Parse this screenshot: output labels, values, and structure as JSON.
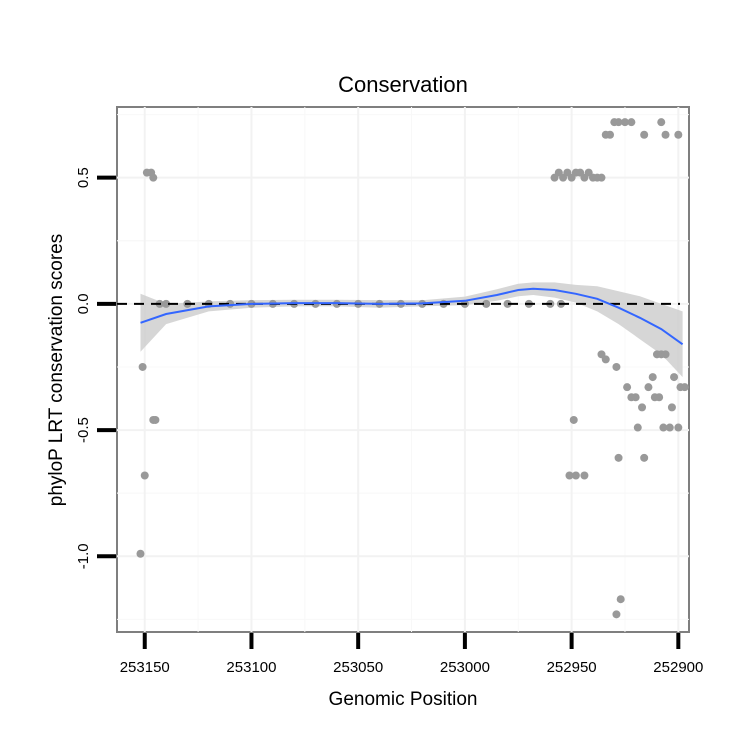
{
  "chart_data": {
    "type": "scatter",
    "title": "Conservation",
    "xlabel": "Genomic Position",
    "ylabel": "phyloP LRT conservation scores",
    "x_reversed": true,
    "xlim": [
      253163,
      252895
    ],
    "ylim": [
      -1.3,
      0.78
    ],
    "x_ticks": [
      {
        "value": 253150,
        "label": "253150"
      },
      {
        "value": 253100,
        "label": "253100"
      },
      {
        "value": 253050,
        "label": "253050"
      },
      {
        "value": 253000,
        "label": "253000"
      },
      {
        "value": 252950,
        "label": "252950"
      },
      {
        "value": 252900,
        "label": "252900"
      }
    ],
    "y_ticks": [
      {
        "value": -1.0,
        "label": "-1.0"
      },
      {
        "value": -0.5,
        "label": "-0.5"
      },
      {
        "value": 0.0,
        "label": "0.0"
      },
      {
        "value": 0.5,
        "label": "0.5"
      }
    ],
    "reference_line": {
      "y": 0.0,
      "style": "dashed",
      "color": "#000000"
    },
    "points_color": "#999999",
    "points": [
      {
        "x": 253149,
        "y": 0.52
      },
      {
        "x": 253147,
        "y": 0.52
      },
      {
        "x": 253146,
        "y": 0.5
      },
      {
        "x": 253151,
        "y": -0.25
      },
      {
        "x": 253150,
        "y": -0.68
      },
      {
        "x": 253152,
        "y": -0.99
      },
      {
        "x": 253145,
        "y": -0.46
      },
      {
        "x": 253146,
        "y": -0.46
      },
      {
        "x": 253143,
        "y": 0.0
      },
      {
        "x": 253140,
        "y": 0.0
      },
      {
        "x": 253130,
        "y": 0.0
      },
      {
        "x": 253120,
        "y": 0.0
      },
      {
        "x": 253110,
        "y": 0.0
      },
      {
        "x": 253100,
        "y": 0.0
      },
      {
        "x": 253090,
        "y": 0.0
      },
      {
        "x": 253080,
        "y": 0.0
      },
      {
        "x": 253070,
        "y": 0.0
      },
      {
        "x": 253060,
        "y": 0.0
      },
      {
        "x": 253050,
        "y": 0.0
      },
      {
        "x": 253040,
        "y": 0.0
      },
      {
        "x": 253030,
        "y": 0.0
      },
      {
        "x": 253020,
        "y": 0.0
      },
      {
        "x": 253010,
        "y": 0.0
      },
      {
        "x": 253000,
        "y": 0.0
      },
      {
        "x": 252990,
        "y": 0.0
      },
      {
        "x": 252980,
        "y": 0.0
      },
      {
        "x": 252970,
        "y": 0.0
      },
      {
        "x": 252960,
        "y": 0.0
      },
      {
        "x": 252955,
        "y": 0.0
      },
      {
        "x": 252958,
        "y": 0.5
      },
      {
        "x": 252956,
        "y": 0.52
      },
      {
        "x": 252954,
        "y": 0.5
      },
      {
        "x": 252952,
        "y": 0.52
      },
      {
        "x": 252950,
        "y": 0.5
      },
      {
        "x": 252948,
        "y": 0.52
      },
      {
        "x": 252946,
        "y": 0.52
      },
      {
        "x": 252944,
        "y": 0.5
      },
      {
        "x": 252942,
        "y": 0.52
      },
      {
        "x": 252940,
        "y": 0.5
      },
      {
        "x": 252938,
        "y": 0.5
      },
      {
        "x": 252936,
        "y": 0.5
      },
      {
        "x": 252934,
        "y": 0.67
      },
      {
        "x": 252932,
        "y": 0.67
      },
      {
        "x": 252930,
        "y": 0.72
      },
      {
        "x": 252928,
        "y": 0.72
      },
      {
        "x": 252925,
        "y": 0.72
      },
      {
        "x": 252922,
        "y": 0.72
      },
      {
        "x": 252916,
        "y": 0.67
      },
      {
        "x": 252908,
        "y": 0.72
      },
      {
        "x": 252906,
        "y": 0.67
      },
      {
        "x": 252900,
        "y": 0.67
      },
      {
        "x": 252949,
        "y": -0.46
      },
      {
        "x": 252951,
        "y": -0.68
      },
      {
        "x": 252948,
        "y": -0.68
      },
      {
        "x": 252944,
        "y": -0.68
      },
      {
        "x": 252936,
        "y": -0.2
      },
      {
        "x": 252934,
        "y": -0.22
      },
      {
        "x": 252929,
        "y": -0.25
      },
      {
        "x": 252928,
        "y": -0.61
      },
      {
        "x": 252924,
        "y": -0.33
      },
      {
        "x": 252922,
        "y": -0.37
      },
      {
        "x": 252920,
        "y": -0.37
      },
      {
        "x": 252919,
        "y": -0.49
      },
      {
        "x": 252917,
        "y": -0.41
      },
      {
        "x": 252916,
        "y": -0.61
      },
      {
        "x": 252914,
        "y": -0.33
      },
      {
        "x": 252912,
        "y": -0.29
      },
      {
        "x": 252911,
        "y": -0.37
      },
      {
        "x": 252910,
        "y": -0.2
      },
      {
        "x": 252909,
        "y": -0.37
      },
      {
        "x": 252908,
        "y": -0.2
      },
      {
        "x": 252907,
        "y": -0.49
      },
      {
        "x": 252906,
        "y": -0.2
      },
      {
        "x": 252904,
        "y": -0.49
      },
      {
        "x": 252903,
        "y": -0.41
      },
      {
        "x": 252902,
        "y": -0.29
      },
      {
        "x": 252900,
        "y": -0.49
      },
      {
        "x": 252899,
        "y": -0.33
      },
      {
        "x": 252897,
        "y": -0.33
      },
      {
        "x": 252927,
        "y": -1.17
      },
      {
        "x": 252929,
        "y": -1.23
      }
    ],
    "smooth_line": {
      "color": "#3366ff",
      "band_color": "#cccccc",
      "x": [
        253152,
        253140,
        253120,
        253100,
        253080,
        253060,
        253040,
        253020,
        253000,
        252985,
        252975,
        252968,
        252958,
        252948,
        252938,
        252928,
        252918,
        252908,
        252898
      ],
      "y": [
        -0.075,
        -0.04,
        -0.01,
        0.0,
        0.003,
        0.003,
        0.0,
        0.002,
        0.012,
        0.035,
        0.055,
        0.06,
        0.055,
        0.04,
        0.02,
        -0.015,
        -0.055,
        -0.1,
        -0.16
      ],
      "lower": [
        -0.19,
        -0.08,
        -0.03,
        -0.015,
        -0.01,
        -0.01,
        -0.015,
        -0.01,
        -0.005,
        0.012,
        0.03,
        0.035,
        0.025,
        0.005,
        -0.03,
        -0.08,
        -0.14,
        -0.2,
        -0.29
      ],
      "upper": [
        0.04,
        0.0,
        0.01,
        0.015,
        0.016,
        0.016,
        0.015,
        0.014,
        0.029,
        0.058,
        0.08,
        0.085,
        0.085,
        0.075,
        0.07,
        0.05,
        0.03,
        0.0,
        -0.03
      ]
    }
  }
}
